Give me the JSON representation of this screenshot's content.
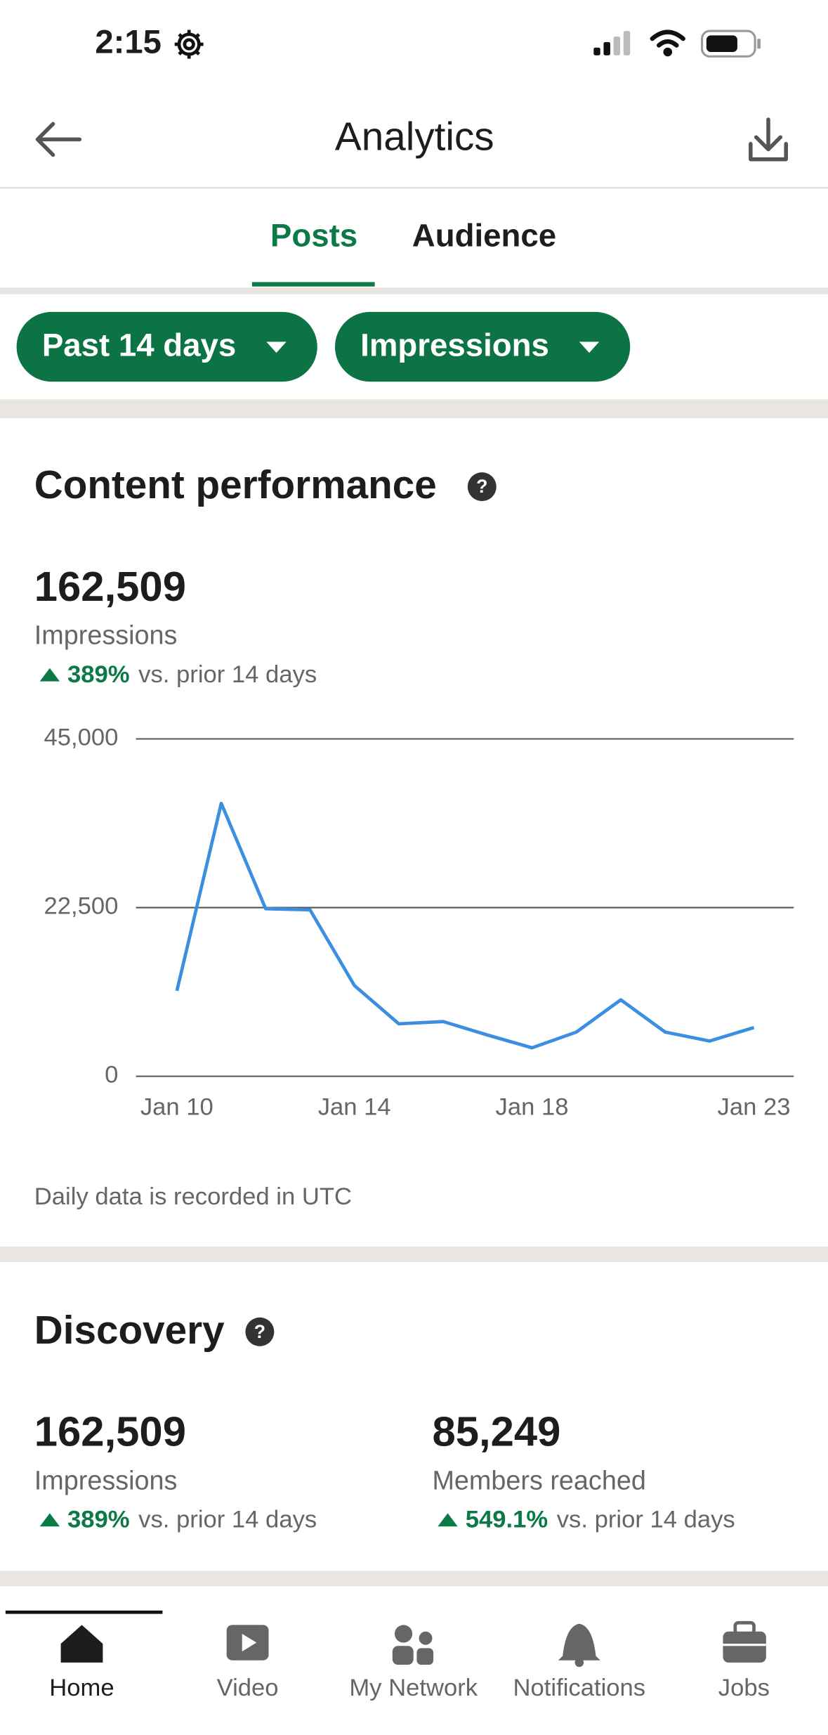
{
  "status_bar": {
    "time": "2:15"
  },
  "header": {
    "title": "Analytics"
  },
  "tabs": [
    "Posts",
    "Audience"
  ],
  "filters": [
    "Past 14 days",
    "Impressions"
  ],
  "content_performance": {
    "title": "Content performance",
    "total": "162,509",
    "metric": "Impressions",
    "change": "389%",
    "comparison": "vs. prior 14 days",
    "note": "Daily data is recorded in UTC"
  },
  "chart_data": {
    "type": "line",
    "categories": [
      "Jan 10",
      null,
      null,
      null,
      "Jan 14",
      null,
      null,
      null,
      "Jan 18",
      null,
      null,
      null,
      null,
      "Jan 23"
    ],
    "values": [
      11400,
      36400,
      22350,
      22200,
      12100,
      7000,
      7300,
      5500,
      3800,
      5900,
      10200,
      5900,
      4700,
      6500
    ],
    "color": "#3b8ee0",
    "ylim": [
      0,
      45000
    ],
    "yticks": [
      0,
      {
        "value": 22500,
        "label": "22,500"
      },
      {
        "value": 45000,
        "label": "45,000"
      }
    ],
    "grid": true
  },
  "discovery": {
    "title": "Discovery",
    "stats": [
      {
        "value": "162,509",
        "metric": "Impressions",
        "change": "389%",
        "comparison": "vs. prior 14 days"
      },
      {
        "value": "85,249",
        "metric": "Members reached",
        "change": "549.1%",
        "comparison": "vs. prior 14 days"
      }
    ]
  },
  "nav": [
    "Home",
    "Video",
    "My Network",
    "Notifications",
    "Jobs"
  ]
}
